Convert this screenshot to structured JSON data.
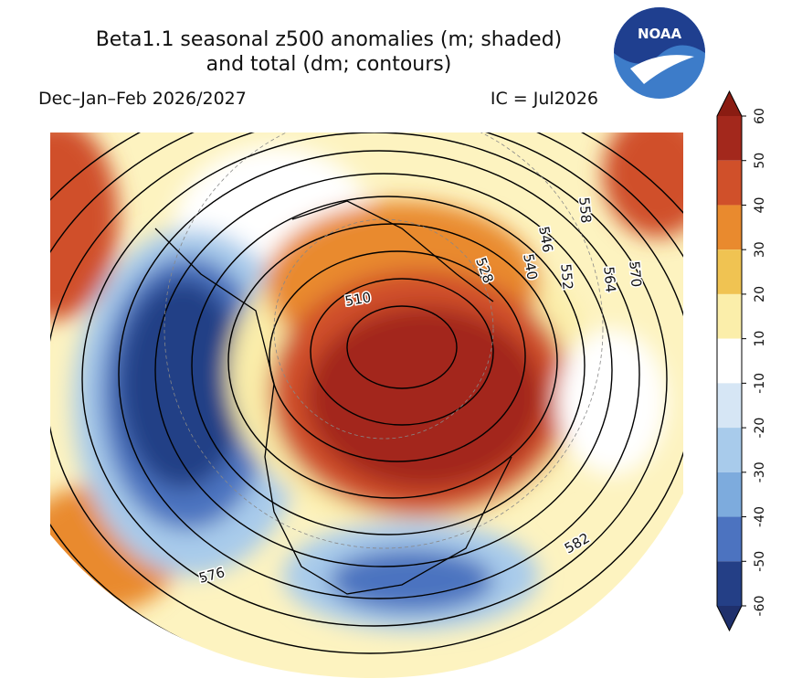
{
  "title": [
    "Beta1.1 seasonal z500 anomalies (m; shaded)",
    "and total (dm; contours)"
  ],
  "subtitle_left": "Dec–Jan–Feb 2026/2027",
  "subtitle_right": "IC = Jul2026",
  "logo_text": "NOAA",
  "contour_labels": [
    510,
    528,
    540,
    546,
    552,
    558,
    564,
    570,
    576,
    582
  ],
  "colorbar": {
    "ticks": [
      60,
      50,
      40,
      30,
      20,
      10,
      -10,
      -20,
      -30,
      -40,
      -50,
      -60
    ],
    "colors": [
      "#a3281c",
      "#d0502a",
      "#e98a2e",
      "#f0c352",
      "#fbeeaa",
      "#ffffff",
      "#d6e6f5",
      "#a8cbeb",
      "#7dabdd",
      "#4c73c0",
      "#243f86"
    ],
    "extend_colors": [
      "#8a1c12",
      "#1f306c"
    ]
  }
}
